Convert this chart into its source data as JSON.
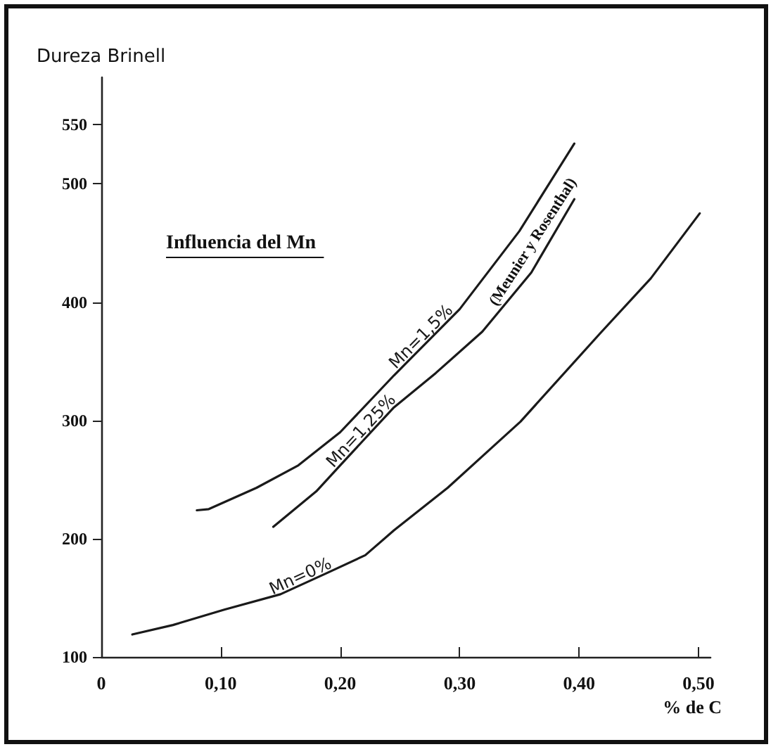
{
  "chart_data": {
    "type": "line",
    "xlabel": "% de C",
    "ylabel": "Dureza Brinell",
    "xlim": [
      0,
      0.51
    ],
    "ylim": [
      100,
      590
    ],
    "xticks": [
      {
        "value": 0,
        "label": "0"
      },
      {
        "value": 0.1,
        "label": "0,10"
      },
      {
        "value": 0.2,
        "label": "0,20"
      },
      {
        "value": 0.3,
        "label": "0,30"
      },
      {
        "value": 0.4,
        "label": "0,40"
      },
      {
        "value": 0.5,
        "label": "0,50"
      }
    ],
    "yticks": [
      100,
      200,
      300,
      400,
      500,
      550
    ],
    "grid": false,
    "legend": false,
    "marker": "none",
    "line_style": "solid",
    "series": [
      {
        "name": "Mn=1,5%",
        "color": "#1a1a1a",
        "x": [
          0.08,
          0.09,
          0.13,
          0.165,
          0.2,
          0.245,
          0.3,
          0.35,
          0.396
        ],
        "values": [
          224,
          225,
          243,
          262,
          290,
          338,
          394,
          460,
          534
        ]
      },
      {
        "name": "Mn=1,25%",
        "color": "#1a1a1a",
        "x": [
          0.144,
          0.18,
          0.2,
          0.245,
          0.28,
          0.319,
          0.36,
          0.396
        ],
        "values": [
          210,
          240,
          262,
          311,
          340,
          375,
          425,
          487
        ]
      },
      {
        "name": "Mn=0%",
        "color": "#1a1a1a",
        "x": [
          0.026,
          0.06,
          0.103,
          0.15,
          0.189,
          0.221,
          0.245,
          0.29,
          0.327,
          0.351,
          0.418,
          0.46,
          0.501
        ],
        "values": [
          119,
          127,
          140,
          153,
          171,
          186,
          207,
          243,
          277,
          299,
          374,
          420,
          475
        ]
      }
    ],
    "annotations": [
      "Influencia del Mn",
      "(Meunier y Rosenthal)"
    ]
  }
}
